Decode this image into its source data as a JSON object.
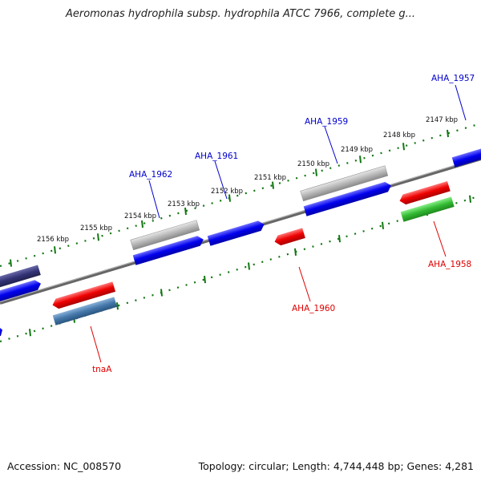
{
  "header": {
    "title": "Aeromonas hydrophila subsp. hydrophila ATCC 7966, complete g..."
  },
  "footer": {
    "accession": "Accession: NC_008570",
    "stats": "Topology: circular; Length: 4,744,448 bp; Genes: 4,281"
  },
  "scale": {
    "tick_labels": [
      "2147 kbp",
      "2148 kbp",
      "2149 kbp",
      "2150 kbp",
      "2151 kbp",
      "2152 kbp",
      "2153 kbp",
      "2154 kbp",
      "2155 kbp",
      "2156 kbp"
    ]
  },
  "genes": {
    "forward_labels": [
      "AHA_1957",
      "AHA_1959",
      "AHA_1961",
      "AHA_1962"
    ],
    "reverse_labels": [
      "AHA_1958",
      "AHA_1960",
      "tnaA"
    ]
  },
  "colors": {
    "forward_gene": "#0000ee",
    "reverse_gene": "#ee0000",
    "forward_label": "#0000cc",
    "reverse_label": "#dd0000",
    "tick_ring": "#117711",
    "backbone": "#777777",
    "gray_feature": "#aaaaaa",
    "green_feature": "#33bb33",
    "steel_feature": "#4477aa",
    "navy_feature": "#333377"
  }
}
